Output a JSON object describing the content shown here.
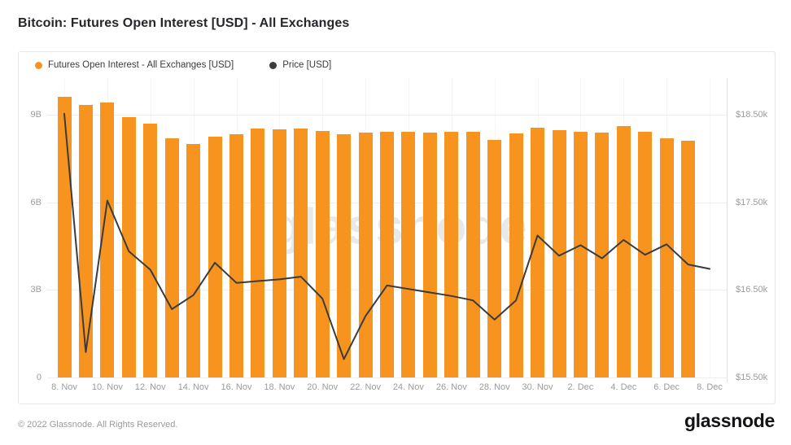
{
  "page": {
    "title": "Bitcoin: Futures Open Interest [USD] - All Exchanges",
    "watermark": "glassnode",
    "footer": {
      "copyright": "© 2022 Glassnode. All Rights Reserved.",
      "brand": "glassnode"
    }
  },
  "legend": [
    {
      "key": "open-interest",
      "label": "Futures Open Interest - All Exchanges [USD]",
      "color": "#f7941f"
    },
    {
      "key": "price",
      "label": "Price [USD]",
      "color": "#3b3b3b"
    }
  ],
  "chart_data": {
    "type": "bar",
    "title": "Bitcoin: Futures Open Interest [USD] - All Exchanges",
    "categories": [
      "8. Nov",
      "9. Nov",
      "10. Nov",
      "11. Nov",
      "12. Nov",
      "13. Nov",
      "14. Nov",
      "15. Nov",
      "16. Nov",
      "17. Nov",
      "18. Nov",
      "19. Nov",
      "20. Nov",
      "21. Nov",
      "22. Nov",
      "23. Nov",
      "24. Nov",
      "25. Nov",
      "26. Nov",
      "27. Nov",
      "28. Nov",
      "29. Nov",
      "30. Nov",
      "1. Dec",
      "2. Dec",
      "3. Dec",
      "4. Dec",
      "5. Dec",
      "6. Dec",
      "7. Dec",
      "8. Dec"
    ],
    "x_tick_every": 2,
    "series": [
      {
        "name": "Futures Open Interest - All Exchanges [USD]",
        "type": "bar",
        "axis": "left",
        "unit": "B USD",
        "color": "#f7941f",
        "values": [
          9.61,
          9.33,
          9.42,
          8.92,
          8.69,
          8.19,
          8.0,
          8.25,
          8.33,
          8.53,
          8.5,
          8.53,
          8.44,
          8.33,
          8.39,
          8.41,
          8.41,
          8.39,
          8.41,
          8.41,
          8.14,
          8.36,
          8.55,
          8.47,
          8.41,
          8.39,
          8.61,
          8.41,
          8.19,
          8.11,
          null
        ]
      },
      {
        "name": "Price [USD]",
        "type": "line",
        "axis": "right",
        "unit": "k USD",
        "color": "#3b3b3b",
        "values": [
          18.51,
          15.79,
          17.52,
          16.94,
          16.73,
          16.28,
          16.44,
          16.81,
          16.58,
          16.6,
          16.62,
          16.65,
          16.4,
          15.71,
          16.2,
          16.55,
          16.51,
          16.47,
          16.43,
          16.38,
          16.16,
          16.38,
          17.12,
          16.89,
          17.01,
          16.86,
          17.07,
          16.9,
          17.02,
          16.79,
          16.74
        ]
      }
    ],
    "left_axis": {
      "tick_labels": [
        "0",
        "3B",
        "6B",
        "9B"
      ],
      "tick_values": [
        0,
        3,
        6,
        9
      ],
      "range": [
        0,
        10.25
      ]
    },
    "right_axis": {
      "tick_labels": [
        "$15.50k",
        "$16.50k",
        "$17.50k",
        "$18.50k"
      ],
      "tick_values": [
        15.5,
        16.5,
        17.5,
        18.5
      ],
      "range": [
        15.5,
        18.917
      ]
    },
    "grid": true,
    "legend_position": "top-left"
  }
}
